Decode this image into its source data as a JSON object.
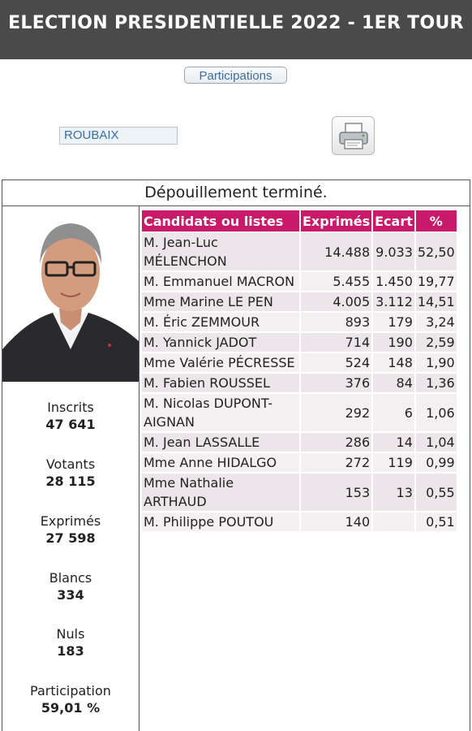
{
  "header": {
    "title": "ELECTION PRESIDENTIELLE 2022 - 1ER TOUR"
  },
  "participations_button": "Participations",
  "commune": "ROUBAIX",
  "print_icon": "printer-icon",
  "status": "Dépouillement terminé.",
  "stats": [
    {
      "label": "Inscrits",
      "value": "47 641"
    },
    {
      "label": "Votants",
      "value": "28 115"
    },
    {
      "label": "Exprimés",
      "value": "27 598"
    },
    {
      "label": "Blancs",
      "value": "334"
    },
    {
      "label": "Nuls",
      "value": "183"
    },
    {
      "label": "Participation",
      "value": "59,01 %"
    }
  ],
  "table": {
    "headers": [
      "Candidats ou listes",
      "Exprimés",
      "Ecart",
      "%"
    ],
    "rows": [
      {
        "name": "M. Jean-Luc MÉLENCHON",
        "exprimes": "14.488",
        "ecart": "9.033",
        "pct": "52,50"
      },
      {
        "name": "M. Emmanuel MACRON",
        "exprimes": "5.455",
        "ecart": "1.450",
        "pct": "19,77"
      },
      {
        "name": "Mme Marine LE PEN",
        "exprimes": "4.005",
        "ecart": "3.112",
        "pct": "14,51"
      },
      {
        "name": "M. Éric ZEMMOUR",
        "exprimes": "893",
        "ecart": "179",
        "pct": "3,24"
      },
      {
        "name": "M. Yannick JADOT",
        "exprimes": "714",
        "ecart": "190",
        "pct": "2,59"
      },
      {
        "name": "Mme Valérie PÉCRESSE",
        "exprimes": "524",
        "ecart": "148",
        "pct": "1,90"
      },
      {
        "name": "M. Fabien ROUSSEL",
        "exprimes": "376",
        "ecart": "84",
        "pct": "1,36"
      },
      {
        "name": "M. Nicolas DUPONT-AIGNAN",
        "exprimes": "292",
        "ecart": "6",
        "pct": "1,06"
      },
      {
        "name": "M. Jean LASSALLE",
        "exprimes": "286",
        "ecart": "14",
        "pct": "1,04"
      },
      {
        "name": "Mme Anne HIDALGO",
        "exprimes": "272",
        "ecart": "119",
        "pct": "0,99"
      },
      {
        "name": "Mme Nathalie ARTHAUD",
        "exprimes": "153",
        "ecart": "13",
        "pct": "0,55"
      },
      {
        "name": "M. Philippe POUTOU",
        "exprimes": "140",
        "ecart": "",
        "pct": "0,51"
      }
    ]
  }
}
